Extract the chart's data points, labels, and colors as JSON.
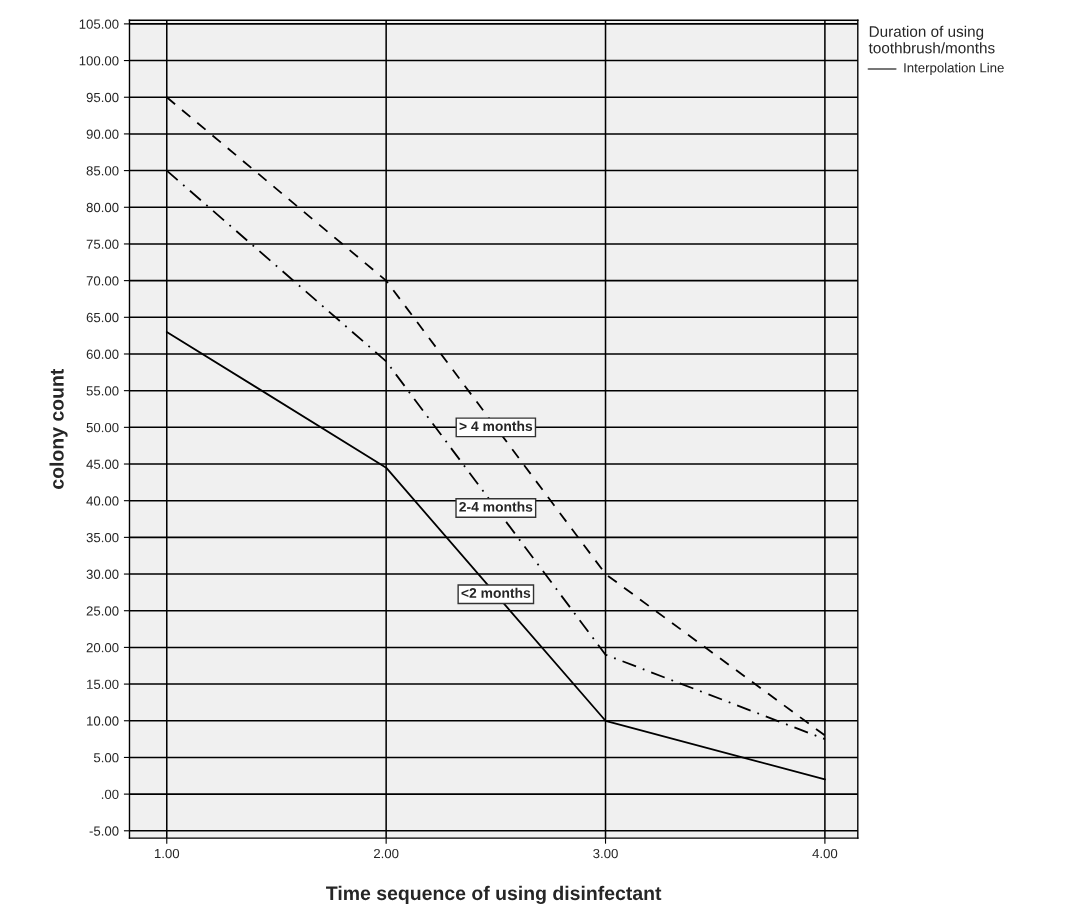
{
  "chart_data": {
    "type": "line",
    "xlabel": "Time sequence of using disinfectant",
    "ylabel": "colony count",
    "legend_title": "Duration of using toothbrush/months",
    "annotations": [
      "Interpolation Line"
    ],
    "x": [
      1,
      2,
      3,
      4
    ],
    "series": [
      {
        "name": "> 4 months",
        "color": "#000000",
        "line_style": "dashed",
        "values": [
          95,
          70,
          30,
          8
        ]
      },
      {
        "name": "2-4 months",
        "color": "#000000",
        "line_style": "dashdot",
        "values": [
          85,
          59,
          19,
          7.5
        ]
      },
      {
        "name": "<2 months",
        "color": "#000000",
        "line_style": "solid",
        "values": [
          63,
          44.5,
          10,
          2
        ]
      }
    ],
    "xlim": [
      0.83,
      4.15
    ],
    "xticks": [
      {
        "value": 1,
        "label": "1.00"
      },
      {
        "value": 2,
        "label": "2.00"
      },
      {
        "value": 3,
        "label": "3.00"
      },
      {
        "value": 4,
        "label": "4.00"
      }
    ],
    "ylim": [
      -6,
      105.5
    ],
    "yticks": [
      {
        "value": -5,
        "label": "-5.00"
      },
      {
        "value": 0,
        "label": ".00"
      },
      {
        "value": 5,
        "label": "5.00"
      },
      {
        "value": 10,
        "label": "10.00"
      },
      {
        "value": 15,
        "label": "15.00"
      },
      {
        "value": 20,
        "label": "20.00"
      },
      {
        "value": 25,
        "label": "25.00"
      },
      {
        "value": 30,
        "label": "30.00"
      },
      {
        "value": 35,
        "label": "35.00"
      },
      {
        "value": 40,
        "label": "40.00"
      },
      {
        "value": 45,
        "label": "45.00"
      },
      {
        "value": 50,
        "label": "50.00"
      },
      {
        "value": 55,
        "label": "55.00"
      },
      {
        "value": 60,
        "label": "60.00"
      },
      {
        "value": 65,
        "label": "65.00"
      },
      {
        "value": 70,
        "label": "70.00"
      },
      {
        "value": 75,
        "label": "75.00"
      },
      {
        "value": 80,
        "label": "80.00"
      },
      {
        "value": 85,
        "label": "85.00"
      },
      {
        "value": 90,
        "label": "90.00"
      },
      {
        "value": 95,
        "label": "95.00"
      },
      {
        "value": 100,
        "label": "100.00"
      },
      {
        "value": 105,
        "label": "105.00"
      }
    ],
    "grid": true
  }
}
